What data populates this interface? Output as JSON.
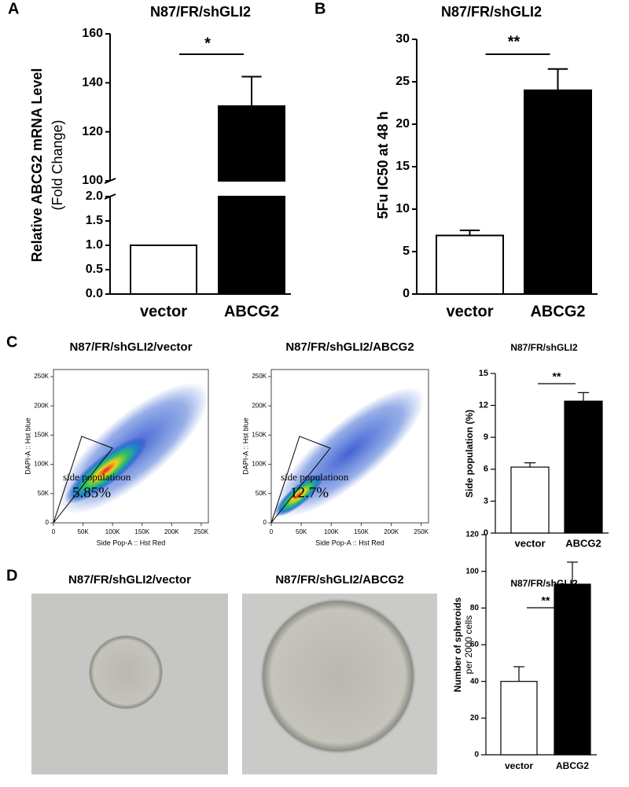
{
  "panel_labels": [
    "A",
    "B",
    "C",
    "D"
  ],
  "chart_data": [
    {
      "type": "bar",
      "title": "N87/FR/shGLI2",
      "ylabel": [
        "Relative ABCG2 mRNA Level",
        "(Fold Change)"
      ],
      "categories": [
        "vector",
        "ABCG2"
      ],
      "values": [
        1,
        130.5
      ],
      "errors": [
        0,
        12
      ],
      "colors": [
        "#ffffff",
        "#000000"
      ],
      "segments": [
        {
          "ylim": [
            0,
            2
          ],
          "yticks": [
            {
              "value": 0,
              "label": "0.0"
            },
            0.5,
            {
              "value": 1,
              "label": "1.0"
            },
            1.5,
            {
              "value": 2,
              "label": "2.0"
            }
          ]
        },
        {
          "ylim": [
            100,
            160
          ],
          "yticks": [
            100,
            120,
            140,
            160
          ]
        }
      ],
      "significance": "*"
    },
    {
      "type": "bar",
      "title": "N87/FR/shGLI2",
      "ylabel": [
        "5Fu IC50 at 48 h"
      ],
      "categories": [
        "vector",
        "ABCG2"
      ],
      "values": [
        6.9,
        24
      ],
      "errors": [
        0.6,
        2.5
      ],
      "colors": [
        "#ffffff",
        "#000000"
      ],
      "ylim": [
        0,
        30
      ],
      "yticks": [
        0,
        5,
        10,
        15,
        20,
        25,
        30
      ],
      "significance": "**"
    },
    {
      "type": "bar",
      "title": "N87/FR/shGLI2",
      "ylabel": [
        "Side population (%)"
      ],
      "categories": [
        "vector",
        "ABCG2"
      ],
      "values": [
        6.2,
        12.4
      ],
      "errors": [
        0.4,
        0.8
      ],
      "colors": [
        "#ffffff",
        "#000000"
      ],
      "ylim": [
        0,
        15
      ],
      "yticks": [
        0,
        3,
        6,
        9,
        12,
        15
      ],
      "significance": "**"
    },
    {
      "type": "bar",
      "title": "N87/FR/shGLI2",
      "ylabel": [
        "Number of spheroids",
        "per 2000 cells"
      ],
      "categories": [
        "vector",
        "ABCG2"
      ],
      "values": [
        40,
        93
      ],
      "errors": [
        8,
        12
      ],
      "colors": [
        "#ffffff",
        "#000000"
      ],
      "ylim": [
        0,
        120
      ],
      "yticks": [
        0,
        20,
        40,
        60,
        80,
        100,
        120
      ],
      "significance": "**"
    }
  ],
  "flow_plots": [
    {
      "title": "N87/FR/shGLI2/vector",
      "gate_label": "side populatioon",
      "percent": "5.85%"
    },
    {
      "title": "N87/FR/shGLI2/ABCG2",
      "gate_label": "side populatioon",
      "percent": "12.7%"
    }
  ],
  "flow_axes": {
    "xlabel": "Side Pop-A :: Hst Red",
    "ylabel": "DAPI-A :: Hst blue",
    "xlim": [
      0,
      262144
    ],
    "ylim": [
      0,
      262144
    ],
    "ticks": [
      0,
      {
        "value": 50000,
        "label": "50K"
      },
      {
        "value": 100000,
        "label": "100K"
      },
      {
        "value": 150000,
        "label": "150K"
      },
      {
        "value": 200000,
        "label": "200K"
      },
      {
        "value": 250000,
        "label": "250K"
      }
    ]
  },
  "micrographs": [
    {
      "title": "N87/FR/shGLI2/vector"
    },
    {
      "title": "N87/FR/shGLI2/ABCG2"
    }
  ]
}
